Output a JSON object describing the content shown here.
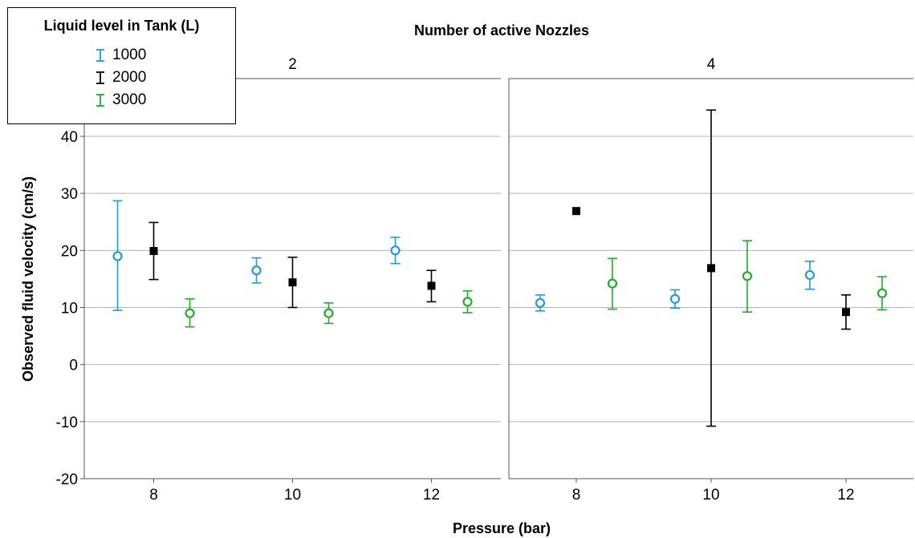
{
  "chart_data": {
    "type": "error-bar",
    "title": "Number of active Nozzles",
    "xlabel": "Pressure (bar)",
    "ylabel": "Observed fluid velocity (cm/s)",
    "ylim": [
      -20,
      40
    ],
    "yticks": [
      "40",
      "30",
      "20",
      "10",
      "0",
      "-10",
      "-20"
    ],
    "grid": "horizontal",
    "categories": [
      "8",
      "10",
      "12"
    ],
    "panels": [
      {
        "label": "2",
        "series": [
          {
            "name": "1000",
            "color": "#1e9bdc",
            "marker": "circle-open",
            "points": [
              {
                "x": "8",
                "mean": 19.0,
                "low": 9.5,
                "high": 28.7
              },
              {
                "x": "10",
                "mean": 16.5,
                "low": 14.3,
                "high": 18.7
              },
              {
                "x": "12",
                "mean": 20.0,
                "low": 17.7,
                "high": 22.3
              }
            ]
          },
          {
            "name": "2000",
            "color": "#000000",
            "marker": "square-filled",
            "points": [
              {
                "x": "8",
                "mean": 19.9,
                "low": 14.9,
                "high": 24.9
              },
              {
                "x": "10",
                "mean": 14.4,
                "low": 10.0,
                "high": 18.8
              },
              {
                "x": "12",
                "mean": 13.8,
                "low": 11.0,
                "high": 16.5
              }
            ]
          },
          {
            "name": "3000",
            "color": "#22ab2c",
            "marker": "circle-open",
            "points": [
              {
                "x": "8",
                "mean": 9.0,
                "low": 6.6,
                "high": 11.5
              },
              {
                "x": "10",
                "mean": 9.0,
                "low": 7.2,
                "high": 10.8
              },
              {
                "x": "12",
                "mean": 11.0,
                "low": 9.1,
                "high": 12.9
              }
            ]
          }
        ]
      },
      {
        "label": "4",
        "series": [
          {
            "name": "1000",
            "color": "#1e9bdc",
            "marker": "circle-open",
            "points": [
              {
                "x": "8",
                "mean": 10.8,
                "low": 9.4,
                "high": 12.2
              },
              {
                "x": "10",
                "mean": 11.5,
                "low": 9.9,
                "high": 13.1
              },
              {
                "x": "12",
                "mean": 15.7,
                "low": 13.2,
                "high": 18.1
              }
            ]
          },
          {
            "name": "2000",
            "color": "#000000",
            "marker": "square-filled",
            "points": [
              {
                "x": "8",
                "mean": 26.9,
                "low": null,
                "high": null
              },
              {
                "x": "10",
                "mean": 16.9,
                "low": -10.8,
                "high": 44.6
              },
              {
                "x": "12",
                "mean": 9.2,
                "low": 6.2,
                "high": 12.2
              }
            ]
          },
          {
            "name": "3000",
            "color": "#22ab2c",
            "marker": "circle-open",
            "points": [
              {
                "x": "8",
                "mean": 14.2,
                "low": 9.7,
                "high": 18.6
              },
              {
                "x": "10",
                "mean": 15.5,
                "low": 9.2,
                "high": 21.7
              },
              {
                "x": "12",
                "mean": 12.5,
                "low": 9.6,
                "high": 15.4
              }
            ]
          }
        ]
      }
    ],
    "legend": {
      "title": "Liquid level in Tank (L)",
      "position": "top-left"
    }
  }
}
